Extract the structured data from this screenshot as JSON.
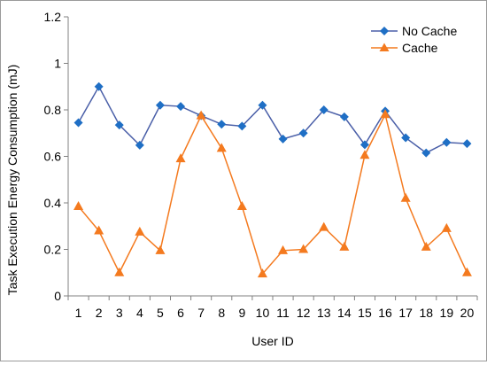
{
  "chart_data": {
    "type": "line",
    "title": "",
    "xlabel": "User ID",
    "ylabel": "Task Execution Energy Consumption (mJ)",
    "x": [
      1,
      2,
      3,
      4,
      5,
      6,
      7,
      8,
      9,
      10,
      11,
      12,
      13,
      14,
      15,
      16,
      17,
      18,
      19,
      20
    ],
    "ylim": [
      0,
      1.2
    ],
    "yticks": [
      "0",
      "0.2",
      "0.4",
      "0.6",
      "0.8",
      "1",
      "1.2"
    ],
    "grid": false,
    "legend_position": "top-right",
    "series": [
      {
        "name": "No Cache",
        "color": "#4a5fa8",
        "marker_color": "#1f6fc5",
        "marker": "diamond",
        "values": [
          0.745,
          0.9,
          0.735,
          0.648,
          0.82,
          0.815,
          0.775,
          0.738,
          0.73,
          0.82,
          0.675,
          0.7,
          0.8,
          0.77,
          0.65,
          0.795,
          0.68,
          0.615,
          0.66,
          0.655
        ]
      },
      {
        "name": "Cache",
        "color": "#f47a1f",
        "marker_color": "#f47a1f",
        "marker": "triangle",
        "values": [
          0.385,
          0.28,
          0.1,
          0.275,
          0.195,
          0.59,
          0.775,
          0.635,
          0.385,
          0.095,
          0.195,
          0.2,
          0.295,
          0.21,
          0.605,
          0.78,
          0.42,
          0.21,
          0.29,
          0.1
        ]
      }
    ]
  }
}
